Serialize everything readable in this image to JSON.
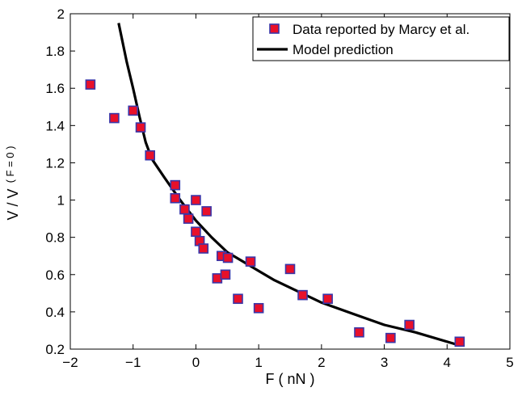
{
  "chart_data": {
    "type": "scatter",
    "xlabel": "F ( nN )",
    "ylabel": "V / V",
    "ylabel_subscript": "( F = 0 )",
    "xlim": [
      -2,
      5
    ],
    "ylim": [
      0.2,
      2
    ],
    "xticks": [
      -2,
      -1,
      0,
      1,
      2,
      3,
      4,
      5
    ],
    "xtick_labels": [
      "−2",
      "−1",
      "0",
      "1",
      "2",
      "3",
      "4",
      "5"
    ],
    "yticks": [
      0.2,
      0.4,
      0.6,
      0.8,
      1,
      1.2,
      1.4,
      1.6,
      1.8,
      2
    ],
    "ytick_labels": [
      "0.2",
      "0.4",
      "0.6",
      "0.8",
      "1",
      "1.2",
      "1.4",
      "1.6",
      "1.8",
      "2"
    ],
    "grid": false,
    "legend": {
      "placement": "top-right"
    },
    "series": [
      {
        "name": "Data reported by Marcy et al.",
        "kind": "scatter",
        "marker": "square",
        "color": "#e8102a",
        "edge_color": "#3a36a8",
        "points": [
          [
            -1.68,
            1.62
          ],
          [
            -1.3,
            1.44
          ],
          [
            -1.0,
            1.48
          ],
          [
            -0.88,
            1.39
          ],
          [
            -0.73,
            1.24
          ],
          [
            -0.33,
            1.08
          ],
          [
            -0.33,
            1.01
          ],
          [
            -0.18,
            0.95
          ],
          [
            -0.12,
            0.9
          ],
          [
            0.0,
            1.0
          ],
          [
            0.0,
            0.83
          ],
          [
            0.06,
            0.78
          ],
          [
            0.12,
            0.74
          ],
          [
            0.17,
            0.94
          ],
          [
            0.34,
            0.58
          ],
          [
            0.41,
            0.7
          ],
          [
            0.47,
            0.6
          ],
          [
            0.51,
            0.69
          ],
          [
            0.67,
            0.47
          ],
          [
            0.87,
            0.67
          ],
          [
            1.0,
            0.42
          ],
          [
            1.5,
            0.63
          ],
          [
            1.7,
            0.49
          ],
          [
            2.1,
            0.47
          ],
          [
            2.6,
            0.29
          ],
          [
            3.1,
            0.26
          ],
          [
            3.4,
            0.33
          ],
          [
            4.2,
            0.24
          ]
        ]
      },
      {
        "name": "Model prediction",
        "kind": "line",
        "color": "#000000",
        "points": [
          [
            -1.23,
            1.95
          ],
          [
            -1.1,
            1.74
          ],
          [
            -1.0,
            1.6
          ],
          [
            -0.9,
            1.45
          ],
          [
            -0.8,
            1.31
          ],
          [
            -0.7,
            1.22
          ],
          [
            -0.5,
            1.12
          ],
          [
            -0.25,
            1.0
          ],
          [
            0.0,
            0.89
          ],
          [
            0.25,
            0.8
          ],
          [
            0.5,
            0.72
          ],
          [
            0.75,
            0.67
          ],
          [
            1.0,
            0.62
          ],
          [
            1.25,
            0.57
          ],
          [
            1.5,
            0.53
          ],
          [
            2.0,
            0.45
          ],
          [
            2.5,
            0.39
          ],
          [
            3.0,
            0.33
          ],
          [
            3.5,
            0.29
          ],
          [
            4.2,
            0.22
          ]
        ]
      }
    ]
  }
}
